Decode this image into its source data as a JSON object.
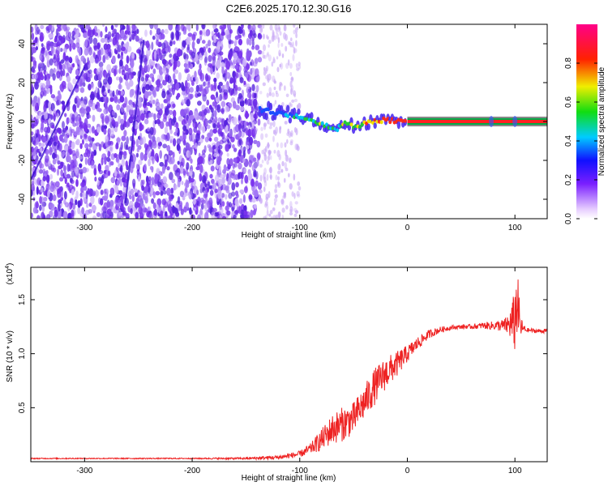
{
  "figure_title": "C2E6.2025.170.12.30.G16",
  "colors": {
    "axes": "#000000",
    "snr_line": "#ee2222",
    "spectrogram_noise": "#7733ee",
    "track_core": "#ff2222",
    "track_outer": "#00aa44"
  },
  "chart_data": [
    {
      "type": "heatmap",
      "title": "",
      "xlabel": "Height of straight line (km)",
      "ylabel": "Frequency (Hz)",
      "xlim": [
        -350,
        130
      ],
      "ylim": [
        -50,
        50
      ],
      "x_ticks": [
        -300,
        -200,
        -100,
        0,
        100
      ],
      "x_tick_labels": [
        "-300",
        "-200",
        "-100",
        "0",
        "100"
      ],
      "y_ticks": [
        -40,
        -20,
        0,
        20,
        40
      ],
      "y_tick_labels": [
        "-40",
        "-20",
        "0",
        "20",
        "40"
      ],
      "colorbar": {
        "label": "Normalized spectral amplitude",
        "range": [
          0,
          1
        ],
        "ticks": [
          0.0,
          0.2,
          0.4,
          0.6,
          0.8
        ],
        "tick_labels": [
          "0.0",
          "0.2",
          "0.4",
          "0.6",
          "0.8"
        ],
        "colormap": "rainbow (white-lavender-violet-blue-cyan-green-yellow-red-magenta)"
      },
      "noise_region_x": [
        -350,
        -137
      ],
      "faint_noise_region_x": [
        -137,
        -100
      ],
      "streaks": [
        {
          "x_start": -350,
          "y_start": -30,
          "x_end": -300,
          "y_end": 28
        },
        {
          "x_start": -262,
          "y_start": -42,
          "x_end": -245,
          "y_end": 42
        }
      ],
      "signal_track": [
        {
          "x": -137,
          "y": 6,
          "amp": 0.35
        },
        {
          "x": -125,
          "y": 5,
          "amp": 0.4
        },
        {
          "x": -115,
          "y": 4,
          "amp": 0.45
        },
        {
          "x": -105,
          "y": 3,
          "amp": 0.5
        },
        {
          "x": -95,
          "y": 2,
          "amp": 0.55
        },
        {
          "x": -85,
          "y": 0,
          "amp": 0.6
        },
        {
          "x": -75,
          "y": -2,
          "amp": 0.6
        },
        {
          "x": -65,
          "y": -4,
          "amp": 0.55
        },
        {
          "x": -58,
          "y": 0,
          "amp": 0.6
        },
        {
          "x": -50,
          "y": -3,
          "amp": 0.65
        },
        {
          "x": -40,
          "y": -1,
          "amp": 0.7
        },
        {
          "x": -30,
          "y": 0,
          "amp": 0.75
        },
        {
          "x": -20,
          "y": 1,
          "amp": 0.8
        },
        {
          "x": -10,
          "y": 0,
          "amp": 0.85
        },
        {
          "x": 0,
          "y": 0,
          "amp": 0.9
        },
        {
          "x": 30,
          "y": 0,
          "amp": 0.95
        },
        {
          "x": 60,
          "y": 0,
          "amp": 0.95
        },
        {
          "x": 100,
          "y": 0,
          "amp": 0.95
        },
        {
          "x": 130,
          "y": 0,
          "amp": 0.95
        }
      ]
    },
    {
      "type": "line",
      "title": "",
      "xlabel": "Height of straight line (km)",
      "ylabel": "SNR (10 * v/v)",
      "y_multiplier_label": "(x10",
      "y_multiplier_exponent": "4",
      "y_multiplier_close": ")",
      "xlim": [
        -350,
        130
      ],
      "ylim": [
        0,
        1.8
      ],
      "x_ticks": [
        -300,
        -200,
        -100,
        0,
        100
      ],
      "x_tick_labels": [
        "-300",
        "-200",
        "-100",
        "0",
        "100"
      ],
      "y_ticks": [
        0.5,
        1.0,
        1.5
      ],
      "y_tick_labels": [
        "0.5",
        "1.0",
        "1.5"
      ],
      "series": [
        {
          "x": [
            -350,
            -300,
            -250,
            -200,
            -150,
            -120,
            -100,
            -90,
            -80,
            -70,
            -60,
            -50,
            -40,
            -30,
            -20,
            -10,
            0,
            10,
            20,
            30,
            40,
            50,
            60,
            70,
            80,
            90,
            95,
            100,
            102,
            105,
            110,
            120,
            130
          ],
          "values": [
            0.03,
            0.03,
            0.03,
            0.03,
            0.03,
            0.04,
            0.07,
            0.12,
            0.2,
            0.3,
            0.35,
            0.4,
            0.55,
            0.7,
            0.82,
            0.9,
            1.0,
            1.1,
            1.18,
            1.22,
            1.24,
            1.25,
            1.25,
            1.26,
            1.26,
            1.26,
            1.27,
            1.3,
            1.5,
            1.25,
            1.22,
            1.21,
            1.21
          ],
          "noise": [
            0.005,
            0.005,
            0.005,
            0.005,
            0.01,
            0.02,
            0.03,
            0.05,
            0.1,
            0.14,
            0.16,
            0.15,
            0.16,
            0.17,
            0.15,
            0.12,
            0.08,
            0.06,
            0.04,
            0.03,
            0.02,
            0.02,
            0.02,
            0.03,
            0.04,
            0.06,
            0.12,
            0.3,
            0.35,
            0.1,
            0.02,
            0.02,
            0.02
          ]
        }
      ]
    }
  ]
}
